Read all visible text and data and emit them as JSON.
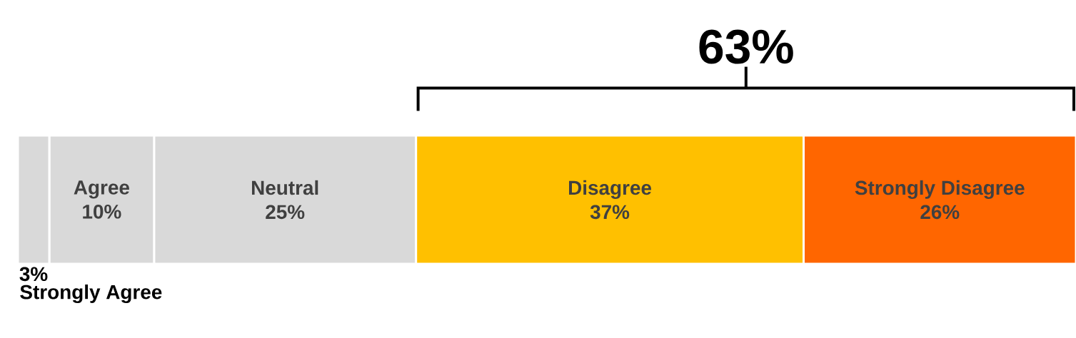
{
  "chart_data": {
    "type": "bar",
    "orientation": "horizontal",
    "stacked": true,
    "categories": [
      null
    ],
    "series": [
      {
        "name": "Strongly Agree",
        "color": "#d9d9d9",
        "values": [
          3
        ],
        "value_labels": [
          "3%"
        ]
      },
      {
        "name": "Agree",
        "color": "#d9d9d9",
        "values": [
          10
        ],
        "value_labels": [
          "10%"
        ]
      },
      {
        "name": "Neutral",
        "color": "#d9d9d9",
        "values": [
          25
        ],
        "value_labels": [
          "25%"
        ]
      },
      {
        "name": "Disagree",
        "color": "#ffc000",
        "values": [
          37
        ],
        "value_labels": [
          "37%"
        ]
      },
      {
        "name": "Strongly Disagree",
        "color": "#ff6600",
        "values": [
          26
        ],
        "value_labels": [
          "26%"
        ]
      }
    ],
    "annotations": [
      "63%"
    ]
  }
}
